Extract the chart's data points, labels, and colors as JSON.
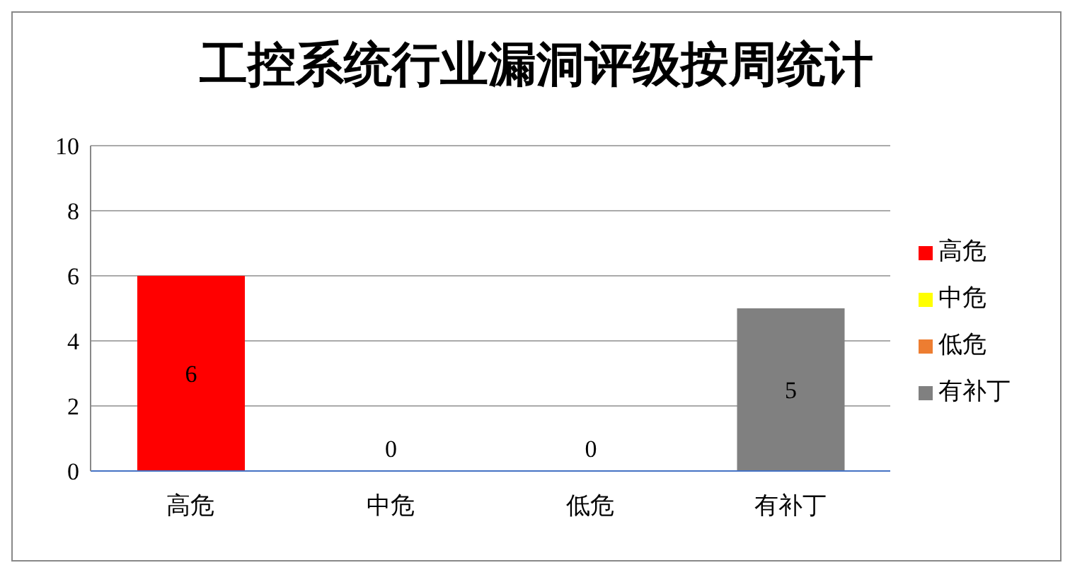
{
  "chart_data": {
    "type": "bar",
    "title": "工控系统行业漏洞评级按周统计",
    "categories": [
      "高危",
      "中危",
      "低危",
      "有补丁"
    ],
    "series": [
      {
        "name": "高危",
        "color": "#ff0000",
        "values": [
          6,
          null,
          null,
          null
        ]
      },
      {
        "name": "中危",
        "color": "#ffff00",
        "values": [
          null,
          0,
          null,
          null
        ]
      },
      {
        "name": "低危",
        "color": "#ed7d31",
        "values": [
          null,
          null,
          0,
          null
        ]
      },
      {
        "name": "有补丁",
        "color": "#808080",
        "values": [
          null,
          null,
          null,
          5
        ]
      }
    ],
    "stacked": true,
    "ylim": [
      0,
      10
    ],
    "yticks": [
      0,
      2,
      4,
      6,
      8,
      10
    ],
    "grid": "y",
    "legend": "right",
    "data_labels": true
  }
}
